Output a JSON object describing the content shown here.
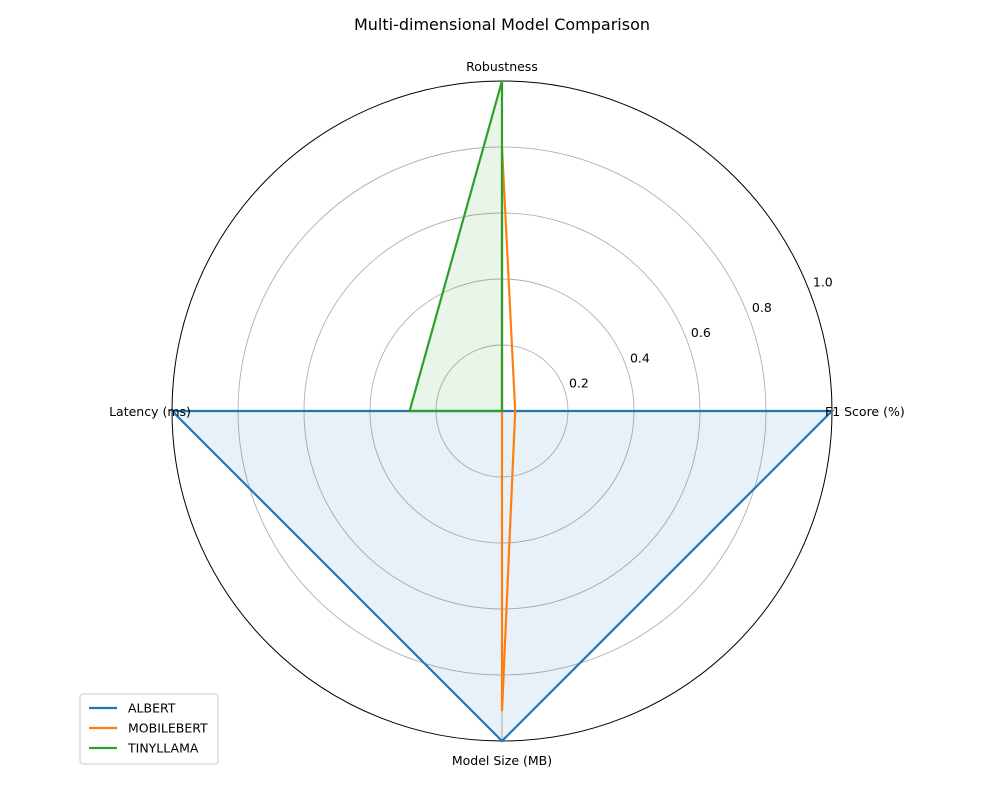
{
  "chart_data": {
    "type": "radar",
    "title": "Multi-dimensional Model Comparison",
    "axes": [
      "F1 Score (%)",
      "Robustness",
      "Latency (ms)",
      "Model Size (MB)"
    ],
    "rlim": [
      0,
      1.0
    ],
    "rticks": [
      "0.2",
      "0.4",
      "0.6",
      "0.8",
      "1.0"
    ],
    "rtick_values": [
      0.2,
      0.4,
      0.6,
      0.8,
      1.0
    ],
    "grid": true,
    "legend_position": "lower-left",
    "series": [
      {
        "name": "ALBERT",
        "color": "#1f77b4",
        "values": [
          1.0,
          0.0,
          1.0,
          1.0
        ],
        "filled": true
      },
      {
        "name": "MOBILEBERT",
        "color": "#ff7f0e",
        "values": [
          0.04,
          0.8,
          0.0,
          0.91
        ],
        "filled": false
      },
      {
        "name": "TINYLLAMA",
        "color": "#2ca02c",
        "values": [
          0.0,
          1.0,
          0.28,
          0.0
        ],
        "filled": true
      }
    ]
  }
}
